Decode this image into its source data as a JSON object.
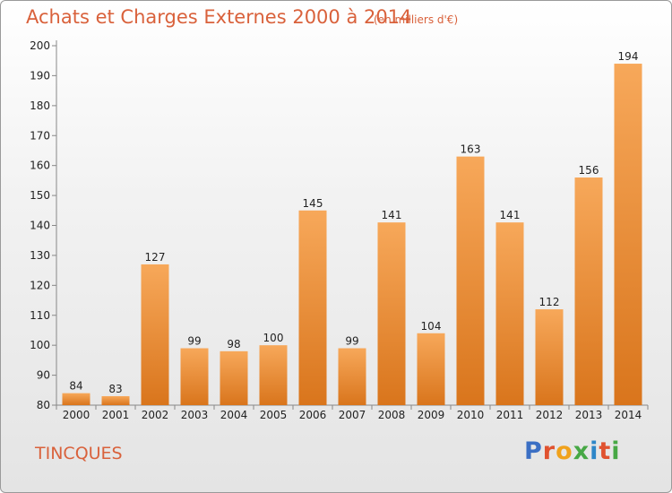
{
  "header": {
    "title": "Achats et Charges Externes 2000 à 2014",
    "unit": "(en milliers d'€)"
  },
  "footer": {
    "commune": "TINCQUES",
    "brand": "Proxiti"
  },
  "colors": {
    "title": "#d9613b",
    "bar_light": "#f7a85a",
    "bar_dark": "#d9751c",
    "brand_letters": [
      "#3b6fc4",
      "#e0522f",
      "#f0a21c",
      "#47a845",
      "#2d86c8",
      "#e0522f",
      "#47a845"
    ]
  },
  "chart_data": {
    "type": "bar",
    "title": "Achats et Charges Externes 2000 à 2014",
    "subtitle": "(en milliers d'€)",
    "xlabel": "",
    "ylabel": "",
    "categories": [
      "2000",
      "2001",
      "2002",
      "2003",
      "2004",
      "2005",
      "2006",
      "2007",
      "2008",
      "2009",
      "2010",
      "2011",
      "2012",
      "2013",
      "2014"
    ],
    "values": [
      84,
      83,
      127,
      99,
      98,
      100,
      145,
      99,
      141,
      104,
      163,
      141,
      112,
      156,
      194
    ],
    "ylim": [
      80,
      200
    ],
    "yticks": [
      80,
      90,
      100,
      110,
      120,
      130,
      140,
      150,
      160,
      170,
      180,
      190,
      200
    ],
    "grid": false,
    "data_labels": true
  }
}
